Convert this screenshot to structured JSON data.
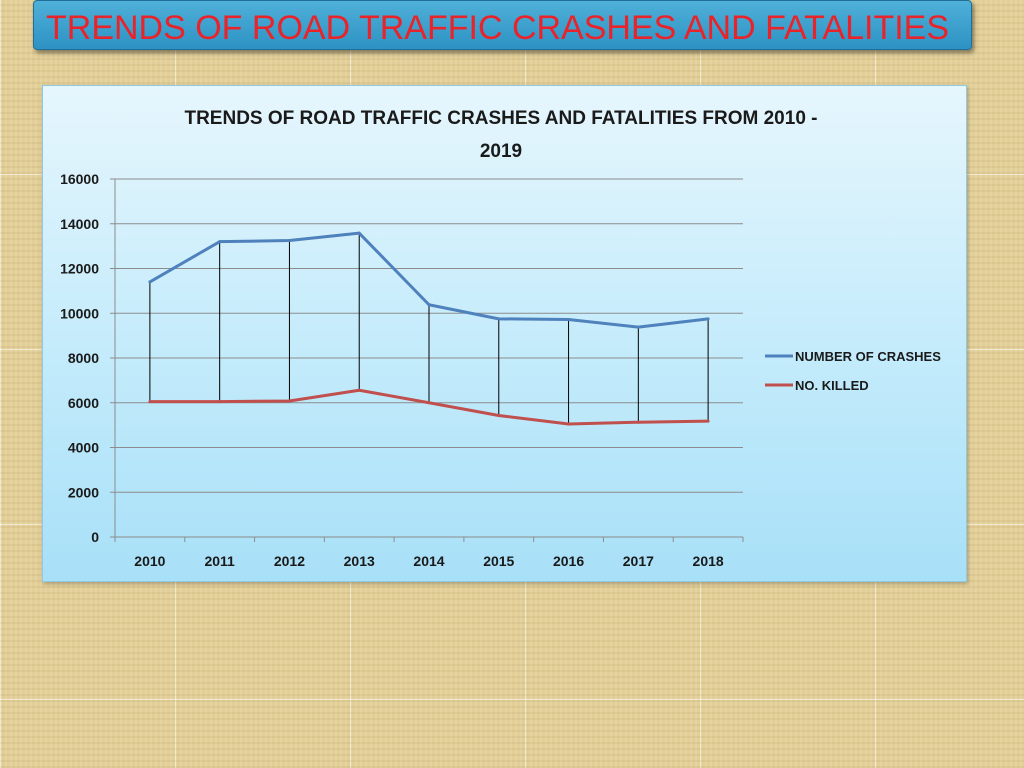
{
  "slide": {
    "title": "TRENDS OF ROAD TRAFFIC CRASHES AND FATALITIES"
  },
  "colors": {
    "title_text": "#e8242a",
    "title_bar": "#3ba2d0",
    "crashes": "#4f81bd",
    "killed": "#c0504d",
    "panel_top": "#e6f6fd",
    "panel_bottom": "#a8e0f8"
  },
  "chart_data": {
    "type": "line",
    "title_lines": [
      "TRENDS OF ROAD TRAFFIC CRASHES AND FATALITIES FROM 2010 -",
      "2019"
    ],
    "xlabel": "",
    "ylabel": "",
    "ylim": [
      0,
      16000
    ],
    "yticks": [
      0,
      2000,
      4000,
      6000,
      8000,
      10000,
      12000,
      14000,
      16000
    ],
    "categories": [
      "2010",
      "2011",
      "2012",
      "2013",
      "2014",
      "2015",
      "2016",
      "2017",
      "2018"
    ],
    "series": [
      {
        "name": "NUMBER OF CRASHES",
        "color": "#4f81bd",
        "values": [
          11400,
          13200,
          13250,
          13580,
          10380,
          9750,
          9720,
          9380,
          9750
        ]
      },
      {
        "name": "NO. KILLED",
        "color": "#c0504d",
        "values": [
          6050,
          6050,
          6080,
          6560,
          6000,
          5430,
          5050,
          5130,
          5180
        ]
      }
    ],
    "drop_lines": true,
    "grid": true,
    "legend_position": "right"
  }
}
